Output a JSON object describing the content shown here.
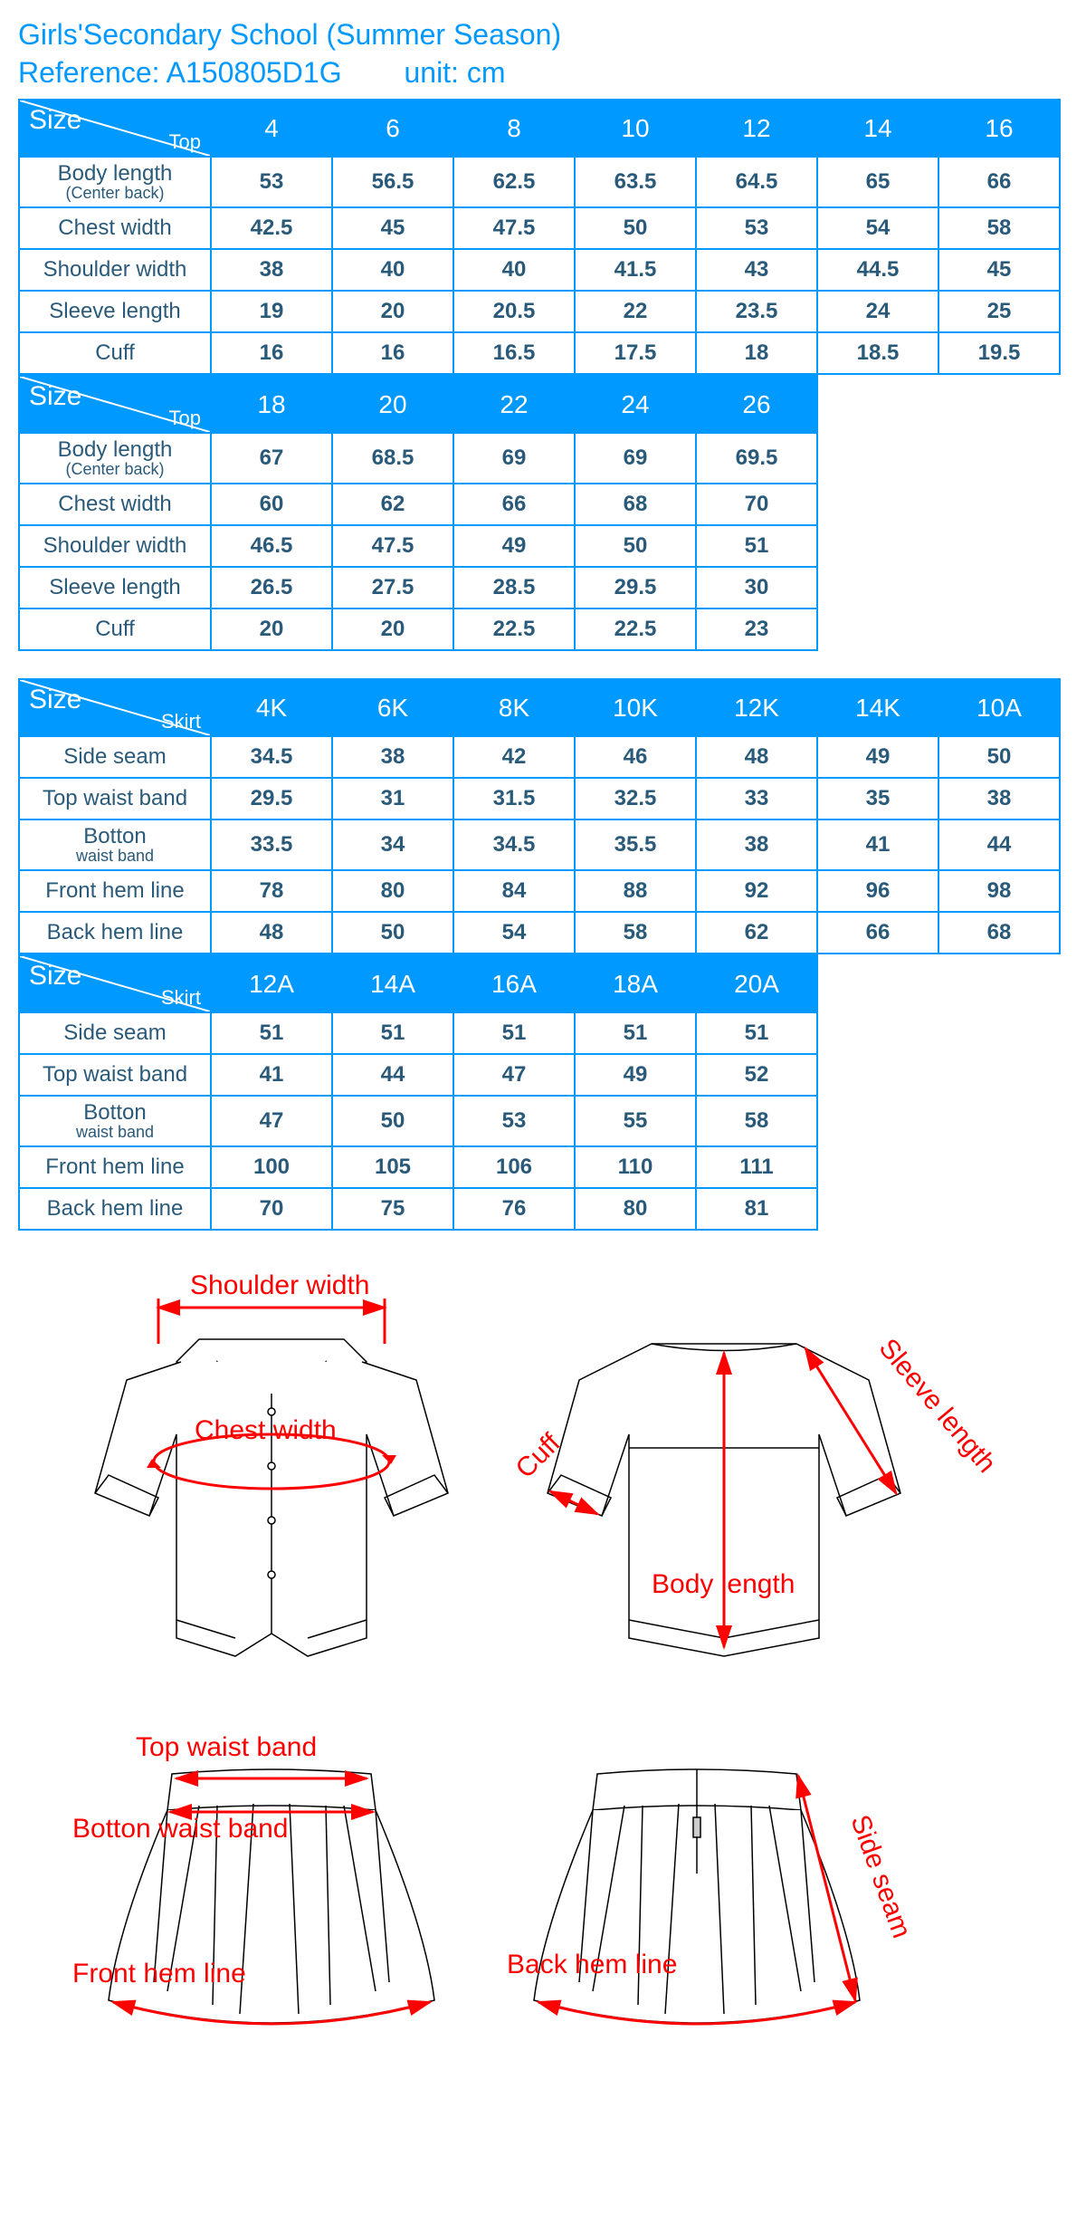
{
  "header": {
    "title": "Girls'Secondary School (Summer Season)",
    "reference_label": "Reference:",
    "reference": "A150805D1G",
    "unit_label": "unit:",
    "unit": "cm"
  },
  "colors": {
    "header_bg": "#0099ff",
    "border": "#0099ff",
    "text": "#2a5a7a",
    "title": "#0099ff",
    "diagram_label": "#ff0000"
  },
  "top_table_1": {
    "size_label": "Size",
    "sub_label": "Top",
    "sizes": [
      "4",
      "6",
      "8",
      "10",
      "12",
      "14",
      "16"
    ],
    "rows": [
      {
        "label": "Body length",
        "sublabel": "(Center back)",
        "values": [
          "53",
          "56.5",
          "62.5",
          "63.5",
          "64.5",
          "65",
          "66"
        ]
      },
      {
        "label": "Chest width",
        "values": [
          "42.5",
          "45",
          "47.5",
          "50",
          "53",
          "54",
          "58"
        ]
      },
      {
        "label": "Shoulder width",
        "values": [
          "38",
          "40",
          "40",
          "41.5",
          "43",
          "44.5",
          "45"
        ]
      },
      {
        "label": "Sleeve length",
        "values": [
          "19",
          "20",
          "20.5",
          "22",
          "23.5",
          "24",
          "25"
        ]
      },
      {
        "label": "Cuff",
        "values": [
          "16",
          "16",
          "16.5",
          "17.5",
          "18",
          "18.5",
          "19.5"
        ]
      }
    ]
  },
  "top_table_2": {
    "size_label": "Size",
    "sub_label": "Top",
    "sizes": [
      "18",
      "20",
      "22",
      "24",
      "26"
    ],
    "rows": [
      {
        "label": "Body length",
        "sublabel": "(Center back)",
        "values": [
          "67",
          "68.5",
          "69",
          "69",
          "69.5"
        ]
      },
      {
        "label": "Chest width",
        "values": [
          "60",
          "62",
          "66",
          "68",
          "70"
        ]
      },
      {
        "label": "Shoulder width",
        "values": [
          "46.5",
          "47.5",
          "49",
          "50",
          "51"
        ]
      },
      {
        "label": "Sleeve length",
        "values": [
          "26.5",
          "27.5",
          "28.5",
          "29.5",
          "30"
        ]
      },
      {
        "label": "Cuff",
        "values": [
          "20",
          "20",
          "22.5",
          "22.5",
          "23"
        ]
      }
    ]
  },
  "skirt_table_1": {
    "size_label": "Size",
    "sub_label": "Skirt",
    "sizes": [
      "4K",
      "6K",
      "8K",
      "10K",
      "12K",
      "14K",
      "10A"
    ],
    "rows": [
      {
        "label": "Side seam",
        "values": [
          "34.5",
          "38",
          "42",
          "46",
          "48",
          "49",
          "50"
        ]
      },
      {
        "label": "Top waist band",
        "values": [
          "29.5",
          "31",
          "31.5",
          "32.5",
          "33",
          "35",
          "38"
        ]
      },
      {
        "label": "Botton",
        "sublabel": "waist band",
        "values": [
          "33.5",
          "34",
          "34.5",
          "35.5",
          "38",
          "41",
          "44"
        ]
      },
      {
        "label": "Front hem line",
        "values": [
          "78",
          "80",
          "84",
          "88",
          "92",
          "96",
          "98"
        ]
      },
      {
        "label": "Back hem line",
        "values": [
          "48",
          "50",
          "54",
          "58",
          "62",
          "66",
          "68"
        ]
      }
    ]
  },
  "skirt_table_2": {
    "size_label": "Size",
    "sub_label": "Skirt",
    "sizes": [
      "12A",
      "14A",
      "16A",
      "18A",
      "20A"
    ],
    "rows": [
      {
        "label": "Side seam",
        "values": [
          "51",
          "51",
          "51",
          "51",
          "51"
        ]
      },
      {
        "label": "Top waist band",
        "values": [
          "41",
          "44",
          "47",
          "49",
          "52"
        ]
      },
      {
        "label": "Botton",
        "sublabel": "waist band",
        "values": [
          "47",
          "50",
          "53",
          "55",
          "58"
        ]
      },
      {
        "label": "Front hem line",
        "values": [
          "100",
          "105",
          "106",
          "110",
          "111"
        ]
      },
      {
        "label": "Back hem line",
        "values": [
          "70",
          "75",
          "76",
          "80",
          "81"
        ]
      }
    ]
  },
  "diagram_labels": {
    "shoulder_width": "Shoulder width",
    "chest_width": "Chest width",
    "sleeve_length": "Sleeve length",
    "cuff": "Cuff",
    "body_length": "Body length",
    "top_waist_band": "Top waist band",
    "botton_waist_band": "Botton waist band",
    "front_hem_line": "Front hem line",
    "back_hem_line": "Back hem line",
    "side_seam": "Side seam"
  }
}
